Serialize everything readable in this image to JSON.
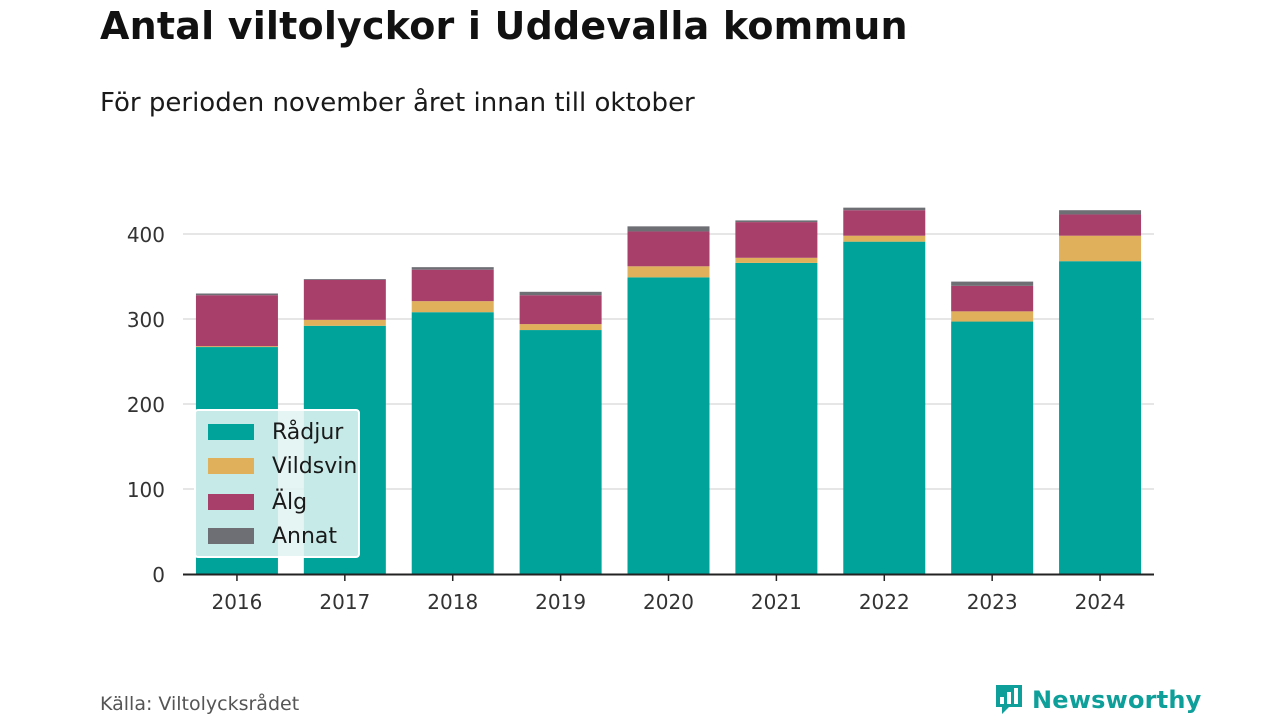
{
  "title": "Antal viltolyckor i Uddevalla kommun",
  "subtitle": "För perioden november året innan till oktober",
  "source": "Källa: Viltolycksrådet",
  "brand": {
    "name": "Newsworthy",
    "icon": "newsworthy-logo-icon",
    "color": "#0e9f9a"
  },
  "chart_data": {
    "type": "bar",
    "stacked": true,
    "categories": [
      "2016",
      "2017",
      "2018",
      "2019",
      "2020",
      "2021",
      "2022",
      "2023",
      "2024"
    ],
    "series": [
      {
        "name": "Rådjur",
        "color": "#00a39a",
        "values": [
          267,
          292,
          308,
          287,
          349,
          366,
          391,
          297,
          368
        ]
      },
      {
        "name": "Vildsvin",
        "color": "#e0b15a",
        "values": [
          1,
          7,
          13,
          7,
          13,
          6,
          7,
          12,
          30
        ]
      },
      {
        "name": "Älg",
        "color": "#a83f6a",
        "values": [
          60,
          47,
          37,
          34,
          41,
          42,
          30,
          30,
          25
        ]
      },
      {
        "name": "Annat",
        "color": "#6e6e75",
        "values": [
          2,
          1,
          3,
          4,
          6,
          2,
          3,
          5,
          5
        ]
      }
    ],
    "yticks": [
      0,
      100,
      200,
      300,
      400
    ],
    "ylim": [
      0,
      440
    ],
    "xlabel": "",
    "ylabel": "",
    "grid": true,
    "legend_position": "bottom-left"
  }
}
